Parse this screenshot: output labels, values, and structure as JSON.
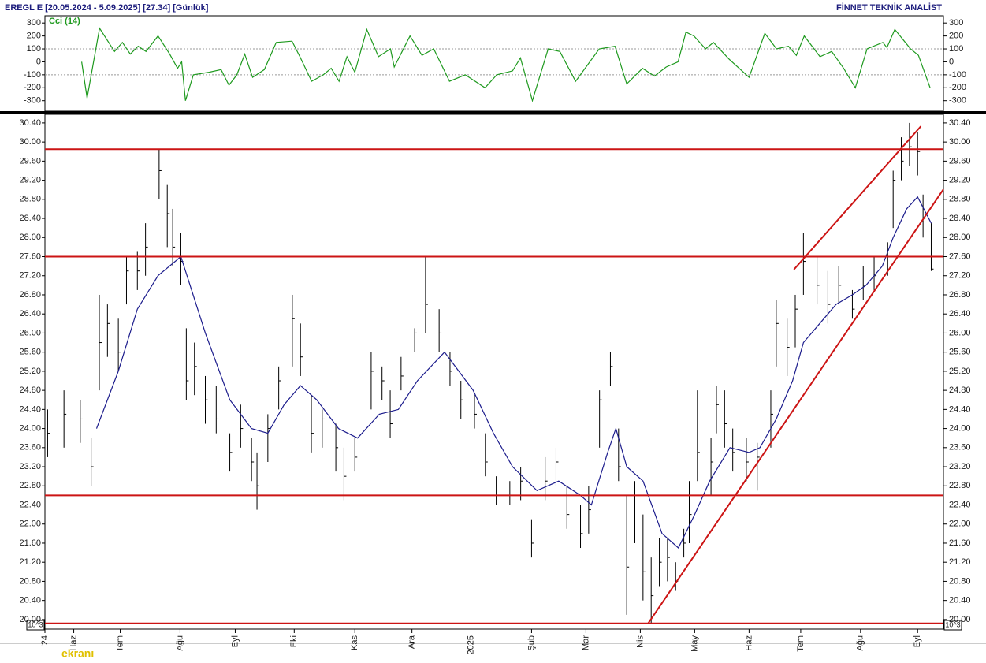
{
  "header": {
    "title": "EREGL E  [20.05.2024 - 5.09.2025]  [27.34]  [Günlük]",
    "brand": "FİNNET TEKNİK ANALİST",
    "scale_label": "10^3",
    "watermark": "ekranı"
  },
  "chart_data": [
    {
      "type": "line",
      "title": "Cci (14)",
      "ylim": [
        -381,
        356
      ],
      "yticks": [
        300,
        200,
        100,
        0,
        -100,
        -200,
        -300
      ],
      "grid_values": [
        100,
        -100
      ],
      "xlim": [
        -1,
        329.5
      ],
      "series": [
        {
          "color": "#1f9a1f",
          "x": [
            12.5,
            14.5,
            19.1,
            24.6,
            27.5,
            30.4,
            33.3,
            36.2,
            40.6,
            44.9,
            47.8,
            49.3,
            50.7,
            53.6,
            59.4,
            63.8,
            66.7,
            69.6,
            72.5,
            75.4,
            79.7,
            84.1,
            89.9,
            92.8,
            97.1,
            101.4,
            104.3,
            107.2,
            110.1,
            113,
            117.4,
            121.7,
            126.1,
            127.5,
            133.3,
            137.7,
            142,
            147.8,
            153.6,
            160.9,
            165.2,
            171,
            173.9,
            178.3,
            184.1,
            188.4,
            194.2,
            202.9,
            208.7,
            213,
            218.8,
            223.2,
            227.5,
            231.9,
            234.8,
            237.7,
            242,
            244.9,
            250.7,
            258,
            263.8,
            268.1,
            272.5,
            275.4,
            278.3,
            284.1,
            288.4,
            292.8,
            297.1,
            301.4,
            307.2,
            308.7,
            311.6,
            317.4,
            320.3,
            324.6
          ],
          "values": [
            0,
            -280,
            260,
            80,
            150,
            60,
            120,
            80,
            200,
            60,
            -50,
            0,
            -300,
            -100,
            -80,
            -60,
            -180,
            -100,
            60,
            -120,
            -60,
            150,
            160,
            40,
            -150,
            -100,
            -50,
            -150,
            40,
            -80,
            250,
            40,
            100,
            -40,
            200,
            50,
            100,
            -150,
            -100,
            -200,
            -100,
            -70,
            30,
            -300,
            100,
            80,
            -150,
            100,
            120,
            -170,
            -50,
            -110,
            -40,
            0,
            230,
            200,
            100,
            150,
            20,
            -120,
            220,
            100,
            120,
            50,
            200,
            40,
            80,
            -50,
            -200,
            100,
            150,
            110,
            250,
            100,
            50,
            -200
          ]
        }
      ]
    },
    {
      "type": "ohlc",
      "ylim": [
        19.8,
        30.58
      ],
      "xlim": [
        -1,
        329.5
      ],
      "bar_color": "#000000",
      "yticks": [
        {
          "value": 20,
          "label": "20.00"
        },
        {
          "value": 20.4,
          "label": "20.40"
        },
        {
          "value": 20.8,
          "label": "20.80"
        },
        {
          "value": 21.2,
          "label": "21.20"
        },
        {
          "value": 21.6,
          "label": "21.60"
        },
        {
          "value": 22,
          "label": "22.00"
        },
        {
          "value": 22.4,
          "label": "22.40"
        },
        {
          "value": 22.8,
          "label": "22.80"
        },
        {
          "value": 23.2,
          "label": "23.20"
        },
        {
          "value": 23.6,
          "label": "23.60"
        },
        {
          "value": 24,
          "label": "24.00"
        },
        {
          "value": 24.4,
          "label": "24.40"
        },
        {
          "value": 24.8,
          "label": "24.80"
        },
        {
          "value": 25.2,
          "label": "25.20"
        },
        {
          "value": 25.6,
          "label": "25.60"
        },
        {
          "value": 26,
          "label": "26.00"
        },
        {
          "value": 26.4,
          "label": "26.40"
        },
        {
          "value": 26.8,
          "label": "26.80"
        },
        {
          "value": 27.2,
          "label": "27.20"
        },
        {
          "value": 27.6,
          "label": "27.60"
        },
        {
          "value": 28,
          "label": "28.00"
        },
        {
          "value": 28.4,
          "label": "28.40"
        },
        {
          "value": 28.8,
          "label": "28.80"
        },
        {
          "value": 29.2,
          "label": "29.20"
        },
        {
          "value": 29.6,
          "label": "29.60"
        },
        {
          "value": 30,
          "label": "30.00"
        },
        {
          "value": 30.4,
          "label": "30.40"
        }
      ],
      "xticks": [
        {
          "value": -1,
          "label": "'24"
        },
        {
          "value": 9.6,
          "label": "Haz"
        },
        {
          "value": 26.7,
          "label": "Tem"
        },
        {
          "value": 48.7,
          "label": "Ağu"
        },
        {
          "value": 69,
          "label": "Eyl"
        },
        {
          "value": 90.7,
          "label": "Eki"
        },
        {
          "value": 113,
          "label": "Kas"
        },
        {
          "value": 134,
          "label": "Ara"
        },
        {
          "value": 155.7,
          "label": "2025"
        },
        {
          "value": 178,
          "label": "Şub"
        },
        {
          "value": 198,
          "label": "Mar"
        },
        {
          "value": 218,
          "label": "Nis"
        },
        {
          "value": 238,
          "label": "May"
        },
        {
          "value": 258,
          "label": "Haz"
        },
        {
          "value": 277,
          "label": "Tem"
        },
        {
          "value": 299,
          "label": "Ağu"
        },
        {
          "value": 320,
          "label": "Eyl"
        }
      ],
      "bars": {
        "x": [
          0,
          6,
          12,
          16,
          19,
          22,
          26,
          29,
          33,
          36,
          41,
          44,
          46,
          49,
          51,
          54,
          58,
          62,
          67,
          71,
          75,
          77,
          81,
          85,
          90,
          93,
          97,
          101,
          106,
          109,
          113,
          119,
          123,
          126,
          130,
          135,
          139,
          144,
          148,
          152,
          157,
          161,
          165,
          170,
          174,
          178,
          183,
          187,
          191,
          196,
          199,
          203,
          207,
          210,
          213,
          216,
          219,
          222,
          225,
          228,
          231,
          234,
          236,
          239,
          244,
          246,
          249,
          252,
          257,
          261,
          266,
          268,
          272,
          275,
          278,
          283,
          287,
          291,
          296,
          300,
          304,
          309,
          311,
          314,
          317,
          320,
          322,
          325
        ],
        "close": [
          23.9,
          24.3,
          24.2,
          23.2,
          25.8,
          26.2,
          25.6,
          27.3,
          27.3,
          27.8,
          29.4,
          28.5,
          27.8,
          27.5,
          25.0,
          25.3,
          24.6,
          24.2,
          23.5,
          24.0,
          23.3,
          22.8,
          24.0,
          25.0,
          26.3,
          25.5,
          23.9,
          24.2,
          23.6,
          23.0,
          23.4,
          25.2,
          25.0,
          24.1,
          25.1,
          26.0,
          26.6,
          26.0,
          25.2,
          24.6,
          24.3,
          23.3,
          22.6,
          22.6,
          22.9,
          21.6,
          22.9,
          23.3,
          22.2,
          21.8,
          22.3,
          24.6,
          25.3,
          23.2,
          21.1,
          22.4,
          21.0,
          20.5,
          21.2,
          21.3,
          20.8,
          21.6,
          22.2,
          23.5,
          23.3,
          24.5,
          24.1,
          23.5,
          23.3,
          23.4,
          24.3,
          26.2,
          25.7,
          26.5,
          27.5,
          27.0,
          26.6,
          27.0,
          26.5,
          27.0,
          27.2,
          27.6,
          29.2,
          29.6,
          29.9,
          29.8,
          28.4,
          27.34
        ],
        "high": [
          24.4,
          24.8,
          24.6,
          23.8,
          26.8,
          26.6,
          26.3,
          27.6,
          27.7,
          28.3,
          29.85,
          29.1,
          28.6,
          28.1,
          26.1,
          25.8,
          25.1,
          24.9,
          23.9,
          24.5,
          23.8,
          23.5,
          24.3,
          25.3,
          26.8,
          26.2,
          24.7,
          24.4,
          24.1,
          23.6,
          23.8,
          25.6,
          25.3,
          24.8,
          25.5,
          26.1,
          27.6,
          26.5,
          25.6,
          25.0,
          24.7,
          23.9,
          23.0,
          22.9,
          23.2,
          22.1,
          23.4,
          23.6,
          22.8,
          22.4,
          22.8,
          24.8,
          25.6,
          24.0,
          22.6,
          22.9,
          22.2,
          21.3,
          21.7,
          21.7,
          21.2,
          21.9,
          22.9,
          24.8,
          23.8,
          24.9,
          24.8,
          24.0,
          23.8,
          23.7,
          24.8,
          26.7,
          26.3,
          26.8,
          28.1,
          27.6,
          27.3,
          27.4,
          26.9,
          27.4,
          27.6,
          27.9,
          29.4,
          30.1,
          30.4,
          30.2,
          28.9,
          28.3
        ],
        "low": [
          23.4,
          23.6,
          23.7,
          22.8,
          24.8,
          25.5,
          25.2,
          26.6,
          26.9,
          27.2,
          28.8,
          27.8,
          27.4,
          27.0,
          24.6,
          24.7,
          24.1,
          23.9,
          23.1,
          23.6,
          22.9,
          22.3,
          23.3,
          24.4,
          25.3,
          25.1,
          23.5,
          23.6,
          23.1,
          22.5,
          23.1,
          24.4,
          24.6,
          23.8,
          24.8,
          25.6,
          26.0,
          25.6,
          24.9,
          24.2,
          24.0,
          23.0,
          22.4,
          22.4,
          22.5,
          21.3,
          22.5,
          22.8,
          21.9,
          21.5,
          21.8,
          23.6,
          24.9,
          22.9,
          20.1,
          21.6,
          20.4,
          19.92,
          20.7,
          20.8,
          20.6,
          21.3,
          21.6,
          22.9,
          22.6,
          23.9,
          23.6,
          23.1,
          22.9,
          22.7,
          23.6,
          25.3,
          25.1,
          25.7,
          26.8,
          26.6,
          26.2,
          26.6,
          26.3,
          26.7,
          26.9,
          27.2,
          28.2,
          29.2,
          29.5,
          29.3,
          28.0,
          27.3
        ]
      },
      "series": [
        {
          "color": "#1c1c8c",
          "x": [
            18,
            26,
            33,
            40.6,
            49,
            58,
            67,
            75,
            81,
            87,
            93,
            99,
            107,
            114,
            122,
            129,
            136,
            146,
            156.5,
            164,
            171,
            180,
            188,
            196,
            200,
            206,
            209,
            213,
            219,
            226,
            232,
            238,
            243.5,
            251,
            258,
            262,
            268,
            274,
            278,
            284,
            290,
            296,
            301,
            307,
            311,
            316,
            320,
            325
          ],
          "values": [
            24.0,
            25.2,
            26.5,
            27.2,
            27.6,
            26.0,
            24.6,
            24.0,
            23.9,
            24.5,
            24.9,
            24.6,
            24.0,
            23.8,
            24.3,
            24.4,
            25.0,
            25.6,
            24.8,
            23.9,
            23.2,
            22.7,
            22.9,
            22.6,
            22.4,
            23.5,
            24.0,
            23.2,
            22.9,
            21.8,
            21.5,
            22.2,
            22.9,
            23.6,
            23.5,
            23.6,
            24.2,
            25.0,
            25.8,
            26.2,
            26.6,
            26.8,
            27.0,
            27.4,
            28.0,
            28.6,
            28.85,
            28.3
          ]
        }
      ],
      "line_color": "#cc1414",
      "hlines": [
        29.85,
        27.6,
        22.6,
        19.92
      ],
      "trendlines": [
        {
          "x": [
            220.9,
            329.5
          ],
          "y": [
            19.92,
            29.01
          ]
        },
        {
          "x": [
            274.5,
            321.2
          ],
          "y": [
            27.33,
            30.33
          ]
        }
      ]
    }
  ]
}
